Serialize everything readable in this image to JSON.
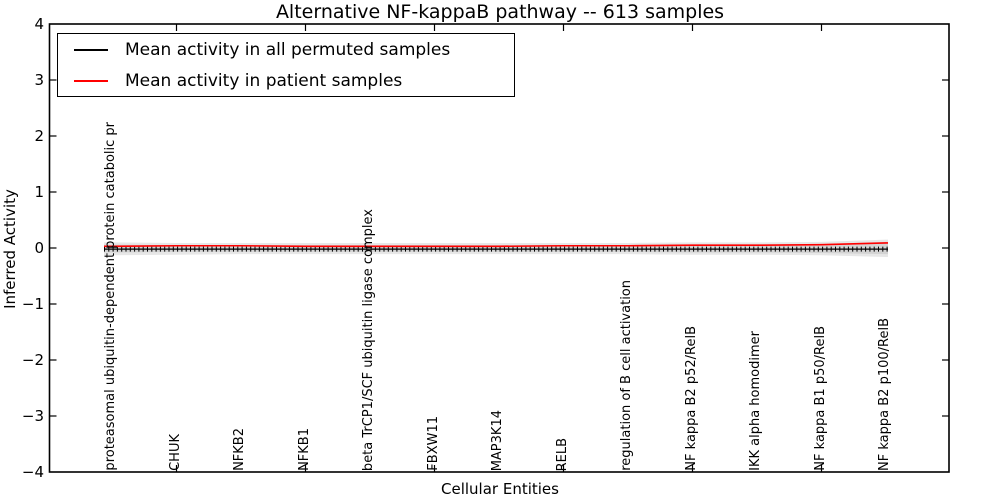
{
  "title": "Alternative NF-kappaB pathway -- 613 samples",
  "legend": {
    "items": [
      {
        "label": "Mean activity in all permuted samples",
        "color": "#000000"
      },
      {
        "label": "Mean activity in patient samples",
        "color": "#ff0000"
      }
    ]
  },
  "axes": {
    "ylabel": "Inferred Activity",
    "xlabel": "Cellular Entities",
    "yticks": [
      "4",
      "3",
      "2",
      "1",
      "0",
      "−1",
      "−2",
      "−3",
      "−4"
    ]
  },
  "chart_data": {
    "type": "line",
    "title": "Alternative NF-kappaB pathway -- 613 samples",
    "xlabel": "Cellular Entities",
    "ylabel": "Inferred Activity",
    "ylim": [
      -4,
      4
    ],
    "grid": false,
    "legend_position": "upper left",
    "categories": [
      "proteasomal ubiquitin-dependent protein catabolic pr",
      "CHUK",
      "NFKB2",
      "NFKB1",
      "beta TrCP1/SCF ubiquitin ligase complex",
      "FBXW11",
      "MAP3K14",
      "RELB",
      "regulation of B cell activation",
      "NF kappa B2 p52/RelB",
      "IKK alpha homodimer",
      "NF kappa B1 p50/RelB",
      "NF kappa B2 p100/RelB"
    ],
    "series": [
      {
        "name": "Mean activity in all permuted samples",
        "color": "#000000",
        "style": "solid with vertical tick markers",
        "values": [
          -0.02,
          -0.02,
          -0.02,
          -0.02,
          -0.02,
          -0.02,
          -0.02,
          -0.02,
          -0.02,
          -0.02,
          -0.02,
          -0.02,
          -0.02
        ]
      },
      {
        "name": "Mean activity in patient samples",
        "color": "#ff0000",
        "style": "solid",
        "values": [
          0.03,
          0.04,
          0.04,
          0.03,
          0.03,
          0.03,
          0.03,
          0.04,
          0.04,
          0.05,
          0.05,
          0.06,
          0.09
        ]
      }
    ],
    "uncertainty_band": {
      "color": "#e7e7e7",
      "upper": [
        0.1,
        0.09,
        0.09,
        0.09,
        0.09,
        0.09,
        0.09,
        0.09,
        0.09,
        0.1,
        0.1,
        0.11,
        0.15
      ],
      "lower": [
        -0.13,
        -0.12,
        -0.11,
        -0.11,
        -0.11,
        -0.11,
        -0.11,
        -0.11,
        -0.11,
        -0.12,
        -0.12,
        -0.13,
        -0.16
      ],
      "inner_color": "#d3d3d3",
      "inner_upper": [
        0.06,
        0.05,
        0.05,
        0.05,
        0.05,
        0.05,
        0.05,
        0.05,
        0.05,
        0.06,
        0.06,
        0.07,
        0.11
      ],
      "inner_lower": [
        -0.08,
        -0.07,
        -0.07,
        -0.07,
        -0.07,
        -0.07,
        -0.07,
        -0.07,
        -0.07,
        -0.08,
        -0.08,
        -0.09,
        -0.11
      ]
    }
  }
}
